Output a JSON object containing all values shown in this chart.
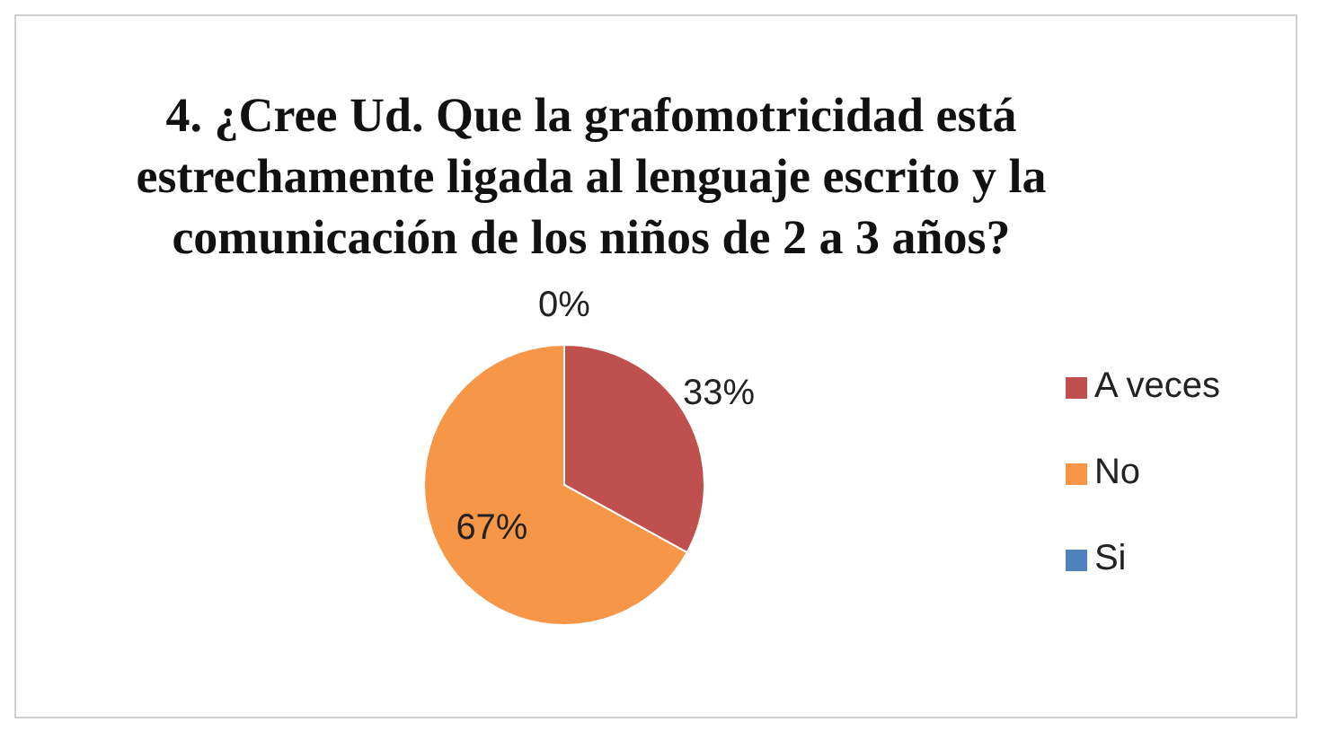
{
  "chart_data": {
    "type": "pie",
    "title": "4. ¿Cree Ud. Que la grafomotricidad está estrechamente ligada al lenguaje escrito y la comunicación de los niños de 2 a 3 años?",
    "categories": [
      "Si",
      "A veces",
      "No"
    ],
    "values": [
      0,
      33,
      67
    ],
    "value_labels": [
      "0%",
      "33%",
      "67%"
    ],
    "colors": [
      "#4f81bd",
      "#c0504d",
      "#f79646"
    ],
    "legend": "right"
  }
}
